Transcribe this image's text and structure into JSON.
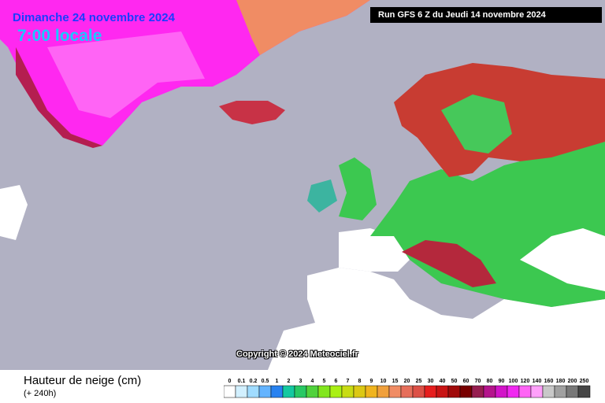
{
  "header": {
    "date": "Dimanche 24 novembre 2024",
    "time": "7:00 locale",
    "run": "Run GFS 6 Z du Jeudi 14 novembre 2024",
    "copyright": "Copyright © 2024 Meteociel.fr"
  },
  "legend": {
    "title": "Hauteur de neige (cm)",
    "subtitle": "(+ 240h)",
    "steps": [
      {
        "label": 0,
        "color": "#ffffff"
      },
      {
        "label": 0.1,
        "color": "#d2f0ff"
      },
      {
        "label": 0.2,
        "color": "#a0dcff"
      },
      {
        "label": 0.5,
        "color": "#64b4ff"
      },
      {
        "label": 1,
        "color": "#2882f0"
      },
      {
        "label": 2,
        "color": "#14c8a0"
      },
      {
        "label": 3,
        "color": "#28c864"
      },
      {
        "label": 4,
        "color": "#50d23c"
      },
      {
        "label": 5,
        "color": "#82e61e"
      },
      {
        "label": 6,
        "color": "#aaf014"
      },
      {
        "label": 7,
        "color": "#c8dc14"
      },
      {
        "label": 8,
        "color": "#dcc814"
      },
      {
        "label": 9,
        "color": "#f0b41e"
      },
      {
        "label": 10,
        "color": "#f0a03c"
      },
      {
        "label": 15,
        "color": "#f08c64"
      },
      {
        "label": 20,
        "color": "#e66e5a"
      },
      {
        "label": 25,
        "color": "#dc5046"
      },
      {
        "label": 30,
        "color": "#e61e1e"
      },
      {
        "label": 40,
        "color": "#c81414"
      },
      {
        "label": 50,
        "color": "#a00a0a"
      },
      {
        "label": 60,
        "color": "#780000"
      },
      {
        "label": 70,
        "color": "#961e50"
      },
      {
        "label": 80,
        "color": "#b4148c"
      },
      {
        "label": 90,
        "color": "#d214c8"
      },
      {
        "label": 100,
        "color": "#f028f0"
      },
      {
        "label": 120,
        "color": "#ff64f5"
      },
      {
        "label": 140,
        "color": "#ffa0fa"
      },
      {
        "label": 160,
        "color": "#c8c8c8"
      },
      {
        "label": 180,
        "color": "#a0a0a0"
      },
      {
        "label": 200,
        "color": "#787878"
      },
      {
        "label": 250,
        "color": "#464646"
      }
    ]
  }
}
